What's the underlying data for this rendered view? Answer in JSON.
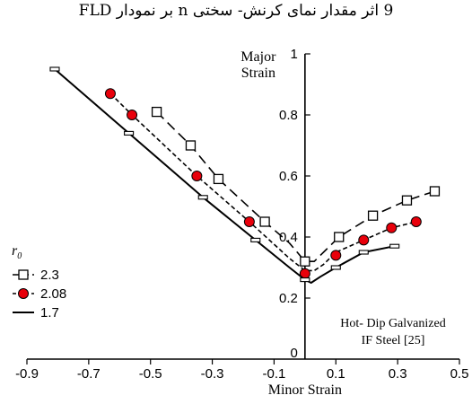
{
  "figure_title": "9 اثر مقدار نمای کرنش- سختی n بر نمودار FLD",
  "chart_data": {
    "type": "line",
    "xlabel": "Minor Strain",
    "ylabel_line1": "Major",
    "ylabel_line2": "Strain",
    "xlim": [
      -0.9,
      0.5
    ],
    "ylim": [
      0,
      1
    ],
    "x_ticks": [
      -0.9,
      -0.7,
      -0.5,
      -0.3,
      -0.1,
      0.1,
      0.3,
      0.5
    ],
    "x_tick_labels": [
      "-0.9",
      "-0.7",
      "-0.5",
      "-0.3",
      "-0.1",
      "0.1",
      "0.3",
      "0.5"
    ],
    "y_ticks": [
      0.2,
      0.4,
      0.6,
      0.8,
      1
    ],
    "y_tick_labels": [
      "0.2",
      "0.4",
      "0.6",
      "0.8",
      "1"
    ],
    "y_zero_label": "0",
    "legend_title": "r",
    "legend_title_sub": "0",
    "legend_position": "bottom-left",
    "annotation_line1": "Hot- Dip Galvanized",
    "annotation_line2": "IF Steel [25]",
    "series": [
      {
        "name": "2.3",
        "marker": "square",
        "line_style": "long-dash",
        "color": "#000000",
        "curve": [
          [
            -0.48,
            0.81
          ],
          [
            -0.37,
            0.7
          ],
          [
            -0.28,
            0.59
          ],
          [
            -0.13,
            0.45
          ],
          [
            -0.05,
            0.38
          ],
          [
            0.0,
            0.32
          ],
          [
            0.03,
            0.32
          ],
          [
            0.08,
            0.37
          ],
          [
            0.11,
            0.4
          ],
          [
            0.22,
            0.47
          ],
          [
            0.33,
            0.52
          ],
          [
            0.42,
            0.55
          ]
        ],
        "points": [
          [
            -0.48,
            0.81
          ],
          [
            -0.37,
            0.7
          ],
          [
            -0.28,
            0.59
          ],
          [
            -0.13,
            0.45
          ],
          [
            0.0,
            0.32
          ],
          [
            0.11,
            0.4
          ],
          [
            0.22,
            0.47
          ],
          [
            0.33,
            0.52
          ],
          [
            0.42,
            0.55
          ]
        ]
      },
      {
        "name": "2.08",
        "marker": "circle",
        "marker_fill": "#e8000b",
        "line_style": "short-dash",
        "color": "#000000",
        "curve": [
          [
            -0.63,
            0.87
          ],
          [
            -0.56,
            0.8
          ],
          [
            -0.35,
            0.6
          ],
          [
            -0.18,
            0.45
          ],
          [
            -0.05,
            0.33
          ],
          [
            0.0,
            0.29
          ],
          [
            0.03,
            0.29
          ],
          [
            0.06,
            0.31
          ],
          [
            0.1,
            0.35
          ],
          [
            0.19,
            0.39
          ],
          [
            0.28,
            0.43
          ],
          [
            0.36,
            0.45
          ]
        ],
        "points": [
          [
            -0.63,
            0.87
          ],
          [
            -0.56,
            0.8
          ],
          [
            -0.35,
            0.6
          ],
          [
            -0.18,
            0.45
          ],
          [
            0.0,
            0.28
          ],
          [
            0.1,
            0.34
          ],
          [
            0.19,
            0.39
          ],
          [
            0.28,
            0.43
          ],
          [
            0.36,
            0.45
          ]
        ]
      },
      {
        "name": "1.7",
        "marker": "dash",
        "line_style": "solid",
        "color": "#000000",
        "curve": [
          [
            -0.81,
            0.95
          ],
          [
            -0.57,
            0.74
          ],
          [
            -0.33,
            0.53
          ],
          [
            -0.16,
            0.39
          ],
          [
            -0.05,
            0.3
          ],
          [
            0.0,
            0.26
          ],
          [
            0.02,
            0.25
          ],
          [
            0.05,
            0.27
          ],
          [
            0.1,
            0.3
          ],
          [
            0.19,
            0.35
          ],
          [
            0.29,
            0.37
          ]
        ],
        "points": [
          [
            -0.81,
            0.95
          ],
          [
            -0.57,
            0.74
          ],
          [
            -0.33,
            0.53
          ],
          [
            -0.16,
            0.39
          ],
          [
            0.0,
            0.26
          ],
          [
            0.1,
            0.3
          ],
          [
            0.19,
            0.35
          ],
          [
            0.29,
            0.37
          ]
        ]
      }
    ]
  }
}
